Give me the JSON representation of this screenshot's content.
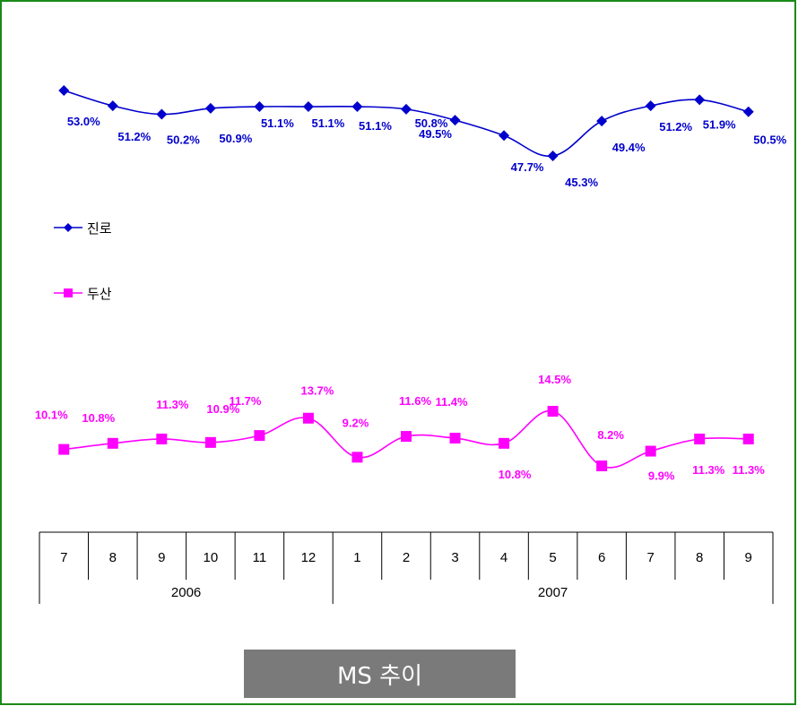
{
  "chart_data": {
    "type": "line",
    "title": "MS 추이",
    "categories": [
      "7",
      "8",
      "9",
      "10",
      "11",
      "12",
      "1",
      "2",
      "3",
      "4",
      "5",
      "6",
      "7",
      "8",
      "9"
    ],
    "year_groups": [
      {
        "label": "2006",
        "months": 6
      },
      {
        "label": "2007",
        "months": 9
      }
    ],
    "series": [
      {
        "name": "진로",
        "color": "#0000CC",
        "marker": "diamond",
        "values": [
          53.0,
          51.2,
          50.2,
          50.9,
          51.1,
          51.1,
          51.1,
          50.8,
          49.5,
          47.7,
          45.3,
          49.4,
          51.2,
          51.9,
          50.5
        ],
        "labels": [
          "53.0%",
          "51.2%",
          "50.2%",
          "50.9%",
          "51.1%",
          "51.1%",
          "51.1%",
          "50.8%",
          "49.5%",
          "47.7%",
          "45.3%",
          "49.4%",
          "51.2%",
          "51.9%",
          "50.5%"
        ]
      },
      {
        "name": "두산",
        "color": "#FF00FF",
        "marker": "square",
        "values": [
          10.1,
          10.8,
          11.3,
          10.9,
          11.7,
          13.7,
          9.2,
          11.6,
          11.4,
          10.8,
          14.5,
          8.2,
          9.9,
          11.3,
          11.3
        ],
        "labels": [
          "10.1%",
          "10.8%",
          "11.3%",
          "10.9%",
          "11.7%",
          "13.7%",
          "9.2%",
          "11.6%",
          "11.4%",
          "10.8%",
          "14.5%",
          "8.2%",
          "9.9%",
          "11.3%",
          "11.3%"
        ]
      }
    ],
    "legend": "left",
    "grid": false
  }
}
